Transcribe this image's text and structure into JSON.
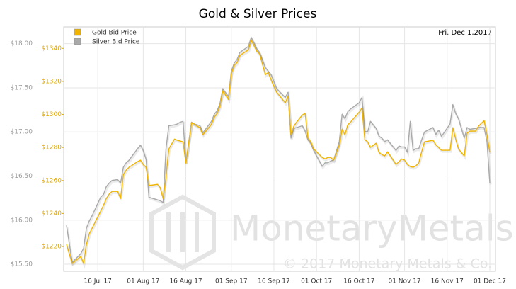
{
  "chart_data": {
    "type": "line",
    "title": "Gold & Silver Prices",
    "date_label": "Fri. Dec 1,2017",
    "watermark": "MonetaryMetals",
    "copyright": "© 2017 Monetary Metals & Co.",
    "x": [
      "2017-07-05",
      "2017-07-07",
      "2017-07-10",
      "2017-07-11",
      "2017-07-12",
      "2017-07-13",
      "2017-07-14",
      "2017-07-17",
      "2017-07-18",
      "2017-07-19",
      "2017-07-20",
      "2017-07-21",
      "2017-07-23",
      "2017-07-24",
      "2017-07-25",
      "2017-07-26",
      "2017-07-27",
      "2017-07-30",
      "2017-07-31",
      "2017-08-01",
      "2017-08-02",
      "2017-08-03",
      "2017-08-06",
      "2017-08-07",
      "2017-08-08",
      "2017-08-09",
      "2017-08-10",
      "2017-08-12",
      "2017-08-13",
      "2017-08-14",
      "2017-08-15",
      "2017-08-16",
      "2017-08-18",
      "2017-08-19",
      "2017-08-20",
      "2017-08-21",
      "2017-08-22",
      "2017-08-25",
      "2017-08-26",
      "2017-08-27",
      "2017-08-28",
      "2017-08-29",
      "2017-08-31",
      "2017-09-01",
      "2017-09-02",
      "2017-09-03",
      "2017-09-04",
      "2017-09-07",
      "2017-09-08",
      "2017-09-09",
      "2017-09-10",
      "2017-09-11",
      "2017-09-13",
      "2017-09-14",
      "2017-09-15",
      "2017-09-16",
      "2017-09-17",
      "2017-09-20",
      "2017-09-21",
      "2017-09-22",
      "2017-09-23",
      "2017-09-24",
      "2017-09-26",
      "2017-09-27",
      "2017-09-28",
      "2017-09-29",
      "2017-09-30",
      "2017-10-03",
      "2017-10-04",
      "2017-10-05",
      "2017-10-06",
      "2017-10-07",
      "2017-10-09",
      "2017-10-10",
      "2017-10-11",
      "2017-10-12",
      "2017-10-13",
      "2017-10-16",
      "2017-10-17",
      "2017-10-18",
      "2017-10-19",
      "2017-10-20",
      "2017-10-22",
      "2017-10-23",
      "2017-10-24",
      "2017-10-25",
      "2017-10-26",
      "2017-10-29",
      "2017-10-30",
      "2017-10-31",
      "2017-11-01",
      "2017-11-02",
      "2017-11-03",
      "2017-11-04",
      "2017-11-05",
      "2017-11-06",
      "2017-11-07",
      "2017-11-08",
      "2017-11-11",
      "2017-11-12",
      "2017-11-13",
      "2017-11-14",
      "2017-11-17",
      "2017-11-18",
      "2017-11-19",
      "2017-11-20",
      "2017-11-22",
      "2017-11-23",
      "2017-11-24",
      "2017-11-26",
      "2017-11-27",
      "2017-11-29",
      "2017-11-30",
      "2017-12-01"
    ],
    "series": [
      {
        "name": "Silver Bid Price",
        "color": "#a9a9a9",
        "axis": "y",
        "values": [
          15.94,
          15.52,
          15.62,
          15.68,
          15.91,
          15.99,
          16.05,
          16.26,
          16.29,
          16.38,
          16.42,
          16.45,
          16.46,
          16.42,
          16.6,
          16.65,
          16.68,
          16.81,
          16.85,
          16.79,
          16.69,
          16.26,
          16.23,
          16.22,
          16.2,
          16.81,
          17.07,
          17.08,
          17.09,
          17.11,
          17.12,
          16.65,
          17.11,
          17.09,
          17.08,
          17.07,
          16.99,
          17.12,
          17.2,
          17.24,
          17.32,
          17.49,
          17.4,
          17.69,
          17.78,
          17.82,
          17.9,
          17.97,
          18.07,
          18.01,
          17.94,
          17.9,
          17.73,
          17.69,
          17.65,
          17.57,
          17.49,
          17.39,
          17.45,
          16.93,
          17.04,
          17.05,
          17.07,
          17.01,
          16.91,
          16.87,
          16.79,
          16.61,
          16.65,
          16.65,
          16.67,
          16.68,
          16.89,
          17.2,
          17.15,
          17.23,
          17.26,
          17.33,
          17.39,
          17.01,
          17.0,
          17.12,
          17.04,
          16.95,
          16.93,
          16.89,
          16.91,
          16.79,
          16.84,
          16.83,
          16.83,
          16.77,
          17.12,
          16.79,
          16.81,
          16.81,
          16.91,
          17.0,
          17.05,
          16.97,
          17.02,
          16.95,
          17.09,
          17.31,
          17.21,
          17.15,
          16.93,
          17.05,
          17.03,
          17.04,
          17.05,
          17.05,
          16.89,
          16.42
        ]
      },
      {
        "name": "Gold Bid Price",
        "color": "#f0b400",
        "axis": "y2",
        "values": [
          1221.3,
          1209.7,
          1214.0,
          1209.7,
          1221.3,
          1227.7,
          1231.1,
          1241.4,
          1244.9,
          1249.1,
          1251.7,
          1253.4,
          1253.4,
          1249.1,
          1263.7,
          1266.3,
          1268.0,
          1271.4,
          1272.3,
          1269.7,
          1268.0,
          1256.9,
          1257.7,
          1255.6,
          1249.1,
          1262.0,
          1279.1,
          1285.1,
          1284.3,
          1283.9,
          1283.4,
          1270.6,
          1295.0,
          1294.1,
          1292.9,
          1292.0,
          1287.7,
          1294.1,
          1298.4,
          1300.6,
          1304.9,
          1314.3,
          1309.1,
          1324.6,
          1329.7,
          1331.4,
          1335.7,
          1339.1,
          1345.1,
          1341.7,
          1338.3,
          1336.6,
          1324.1,
          1325.4,
          1321.1,
          1316.9,
          1313.4,
          1307.0,
          1310.9,
          1287.7,
          1292.9,
          1295.4,
          1299.7,
          1300.6,
          1285.6,
          1283.4,
          1279.1,
          1274.0,
          1273.1,
          1274.0,
          1274.0,
          1272.3,
          1281.3,
          1291.1,
          1287.7,
          1293.7,
          1295.4,
          1301.4,
          1304.0,
          1284.7,
          1283.4,
          1280.0,
          1282.6,
          1277.0,
          1275.7,
          1274.9,
          1277.4,
          1269.7,
          1271.4,
          1273.1,
          1272.3,
          1269.7,
          1268.4,
          1268.0,
          1268.9,
          1270.6,
          1277.4,
          1283.4,
          1284.3,
          1281.7,
          1280.0,
          1278.3,
          1278.3,
          1292.0,
          1285.1,
          1279.1,
          1274.9,
          1288.6,
          1289.9,
          1289.9,
          1292.9,
          1296.3,
          1287.7,
          1277.0
        ]
      }
    ],
    "legend_order": [
      1,
      0
    ],
    "xlim": [
      "2017-07-04",
      "2017-12-03"
    ],
    "xticks": [
      {
        "value": "2017-07-16",
        "label": "16 Jul 17"
      },
      {
        "value": "2017-08-01",
        "label": "01 Aug 17"
      },
      {
        "value": "2017-08-16",
        "label": "16 Aug 17"
      },
      {
        "value": "2017-09-01",
        "label": "01 Sep 17"
      },
      {
        "value": "2017-09-16",
        "label": "16 Sep 17"
      },
      {
        "value": "2017-10-01",
        "label": "01 Oct 17"
      },
      {
        "value": "2017-10-16",
        "label": "16 Oct 17"
      },
      {
        "value": "2017-11-01",
        "label": "01 Nov 17"
      },
      {
        "value": "2017-11-16",
        "label": "16 Nov 17"
      },
      {
        "value": "2017-12-01",
        "label": "01 Dec 17"
      }
    ],
    "ylim": [
      15.42,
      18.19
    ],
    "yticks": [
      {
        "value": 15.5,
        "label": "$15.50"
      },
      {
        "value": 16,
        "label": "$16.00"
      },
      {
        "value": 16.5,
        "label": "$16.50"
      },
      {
        "value": 17,
        "label": "$17.00"
      },
      {
        "value": 17.5,
        "label": "$17.50"
      },
      {
        "value": 18,
        "label": "$18.00"
      }
    ],
    "y2lim": [
      1205,
      1353
    ],
    "y2ticks": [
      {
        "value": 1220,
        "label": "$1220"
      },
      {
        "value": 1240,
        "label": "$1240"
      },
      {
        "value": 1260,
        "label": "$1260"
      },
      {
        "value": 1280,
        "label": "$1280"
      },
      {
        "value": 1300,
        "label": "$1300"
      },
      {
        "value": 1320,
        "label": "$1320"
      },
      {
        "value": 1340,
        "label": "$1340"
      }
    ],
    "grid": true,
    "legend": "top-left"
  }
}
